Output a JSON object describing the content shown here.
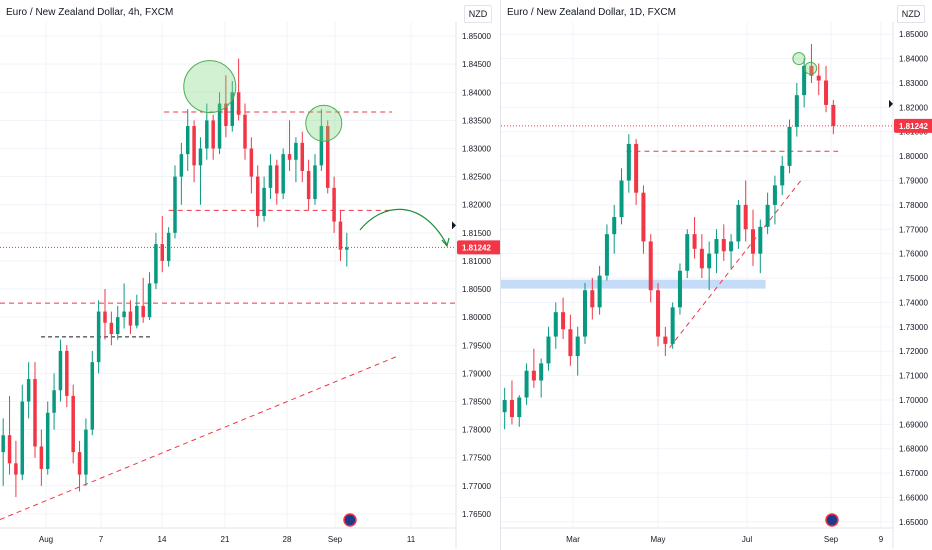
{
  "chart_data": [
    {
      "type": "candlestick",
      "title": "Euro / New Zealand Dollar, 4h, FXCM",
      "currency": "NZD",
      "y_ticks": [
        "1.85000",
        "1.84500",
        "1.84000",
        "1.83500",
        "1.83000",
        "1.82500",
        "1.82000",
        "1.81500",
        "1.81000",
        "1.80500",
        "1.80000",
        "1.79500",
        "1.79000",
        "1.78500",
        "1.78000",
        "1.77500",
        "1.77000",
        "1.76500"
      ],
      "x_ticks": [
        "Aug",
        "7",
        "14",
        "21",
        "28",
        "Sep",
        "11"
      ],
      "ylim": [
        1.7625,
        1.8525
      ],
      "last_price": "1.81242",
      "colors": {
        "up": "#089981",
        "down": "#f23645",
        "last": "#f23645",
        "level": "#f23645"
      },
      "levels": [
        1.8365,
        1.819,
        1.8025
      ],
      "support_marker": 1.7965,
      "trendline": [
        [
          0.0,
          1.764
        ],
        [
          0.87,
          1.793
        ]
      ],
      "circles": [
        [
          0.46,
          1.841
        ],
        [
          0.71,
          1.8345
        ]
      ],
      "candles": [
        [
          1.776,
          1.782,
          1.77,
          1.779
        ],
        [
          1.779,
          1.786,
          1.772,
          1.774
        ],
        [
          1.774,
          1.778,
          1.768,
          1.772
        ],
        [
          1.772,
          1.788,
          1.771,
          1.785
        ],
        [
          1.785,
          1.792,
          1.782,
          1.789
        ],
        [
          1.789,
          1.792,
          1.775,
          1.777
        ],
        [
          1.777,
          1.78,
          1.77,
          1.773
        ],
        [
          1.773,
          1.785,
          1.772,
          1.783
        ],
        [
          1.783,
          1.79,
          1.78,
          1.787
        ],
        [
          1.787,
          1.796,
          1.785,
          1.794
        ],
        [
          1.794,
          1.795,
          1.784,
          1.786
        ],
        [
          1.786,
          1.788,
          1.774,
          1.776
        ],
        [
          1.776,
          1.778,
          1.769,
          1.772
        ],
        [
          1.772,
          1.782,
          1.77,
          1.78
        ],
        [
          1.78,
          1.794,
          1.779,
          1.792
        ],
        [
          1.792,
          1.803,
          1.79,
          1.801
        ],
        [
          1.801,
          1.805,
          1.796,
          1.799
        ],
        [
          1.799,
          1.801,
          1.795,
          1.797
        ],
        [
          1.797,
          1.802,
          1.796,
          1.8
        ],
        [
          1.8,
          1.806,
          1.798,
          1.801
        ],
        [
          1.801,
          1.803,
          1.797,
          1.7985
        ],
        [
          1.7985,
          1.804,
          1.798,
          1.802
        ],
        [
          1.802,
          1.807,
          1.799,
          1.8
        ],
        [
          1.8,
          1.808,
          1.7995,
          1.806
        ],
        [
          1.806,
          1.815,
          1.805,
          1.813
        ],
        [
          1.813,
          1.818,
          1.808,
          1.81
        ],
        [
          1.81,
          1.816,
          1.809,
          1.815
        ],
        [
          1.815,
          1.827,
          1.814,
          1.825
        ],
        [
          1.825,
          1.831,
          1.82,
          1.829
        ],
        [
          1.829,
          1.837,
          1.826,
          1.834
        ],
        [
          1.834,
          1.835,
          1.824,
          1.827
        ],
        [
          1.827,
          1.832,
          1.82,
          1.83
        ],
        [
          1.83,
          1.838,
          1.828,
          1.835
        ],
        [
          1.835,
          1.836,
          1.828,
          1.83
        ],
        [
          1.83,
          1.84,
          1.829,
          1.838
        ],
        [
          1.838,
          1.843,
          1.832,
          1.834
        ],
        [
          1.834,
          1.842,
          1.833,
          1.84
        ],
        [
          1.84,
          1.846,
          1.835,
          1.836
        ],
        [
          1.836,
          1.838,
          1.828,
          1.83
        ],
        [
          1.83,
          1.832,
          1.822,
          1.825
        ],
        [
          1.825,
          1.827,
          1.816,
          1.818
        ],
        [
          1.818,
          1.825,
          1.817,
          1.823
        ],
        [
          1.823,
          1.829,
          1.821,
          1.827
        ],
        [
          1.827,
          1.828,
          1.82,
          1.822
        ],
        [
          1.822,
          1.83,
          1.821,
          1.829
        ],
        [
          1.829,
          1.835,
          1.826,
          1.828
        ],
        [
          1.828,
          1.832,
          1.824,
          1.831
        ],
        [
          1.831,
          1.833,
          1.824,
          1.826
        ],
        [
          1.826,
          1.828,
          1.819,
          1.821
        ],
        [
          1.821,
          1.829,
          1.82,
          1.827
        ],
        [
          1.827,
          1.837,
          1.826,
          1.834
        ],
        [
          1.834,
          1.835,
          1.822,
          1.823
        ],
        [
          1.823,
          1.825,
          1.815,
          1.817
        ],
        [
          1.817,
          1.819,
          1.81,
          1.812
        ],
        [
          1.812,
          1.815,
          1.809,
          1.8124
        ]
      ]
    },
    {
      "type": "candlestick",
      "title": "Euro / New Zealand Dollar, 1D, FXCM",
      "currency": "NZD",
      "y_ticks": [
        "1.85000",
        "1.84000",
        "1.83000",
        "1.82000",
        "1.81000",
        "1.80000",
        "1.79000",
        "1.78000",
        "1.77000",
        "1.76000",
        "1.75000",
        "1.74000",
        "1.73000",
        "1.72000",
        "1.71000",
        "1.70000",
        "1.69000",
        "1.68000",
        "1.67000",
        "1.66000",
        "1.65000"
      ],
      "x_ticks": [
        "Mar",
        "May",
        "Jul",
        "Sep",
        "9"
      ],
      "ylim": [
        1.6475,
        1.855
      ],
      "last_price": "1.81242",
      "colors": {
        "up": "#089981",
        "down": "#f23645",
        "last": "#f23645",
        "level": "#f23645",
        "zone": "#bbd6f7"
      },
      "levels": [
        1.802
      ],
      "zone": [
        1.7465,
        1.7485
      ],
      "trendline": [
        [
          0.43,
          1.7215
        ],
        [
          0.77,
          1.791
        ]
      ],
      "circles": [
        [
          0.76,
          1.84
        ],
        [
          0.79,
          1.836
        ]
      ],
      "candles": [
        [
          1.695,
          1.705,
          1.688,
          1.7
        ],
        [
          1.7,
          1.708,
          1.69,
          1.693
        ],
        [
          1.693,
          1.702,
          1.689,
          1.701
        ],
        [
          1.701,
          1.715,
          1.698,
          1.712
        ],
        [
          1.712,
          1.721,
          1.705,
          1.708
        ],
        [
          1.708,
          1.717,
          1.701,
          1.715
        ],
        [
          1.715,
          1.73,
          1.712,
          1.726
        ],
        [
          1.726,
          1.74,
          1.721,
          1.736
        ],
        [
          1.736,
          1.742,
          1.725,
          1.729
        ],
        [
          1.729,
          1.735,
          1.714,
          1.718
        ],
        [
          1.718,
          1.73,
          1.71,
          1.726
        ],
        [
          1.726,
          1.748,
          1.723,
          1.745
        ],
        [
          1.745,
          1.75,
          1.733,
          1.738
        ],
        [
          1.738,
          1.755,
          1.735,
          1.751
        ],
        [
          1.751,
          1.772,
          1.749,
          1.768
        ],
        [
          1.768,
          1.78,
          1.76,
          1.775
        ],
        [
          1.775,
          1.795,
          1.772,
          1.79
        ],
        [
          1.79,
          1.809,
          1.785,
          1.805
        ],
        [
          1.805,
          1.807,
          1.78,
          1.785
        ],
        [
          1.785,
          1.788,
          1.76,
          1.765
        ],
        [
          1.765,
          1.768,
          1.74,
          1.745
        ],
        [
          1.745,
          1.748,
          1.722,
          1.726
        ],
        [
          1.726,
          1.73,
          1.718,
          1.723
        ],
        [
          1.723,
          1.74,
          1.721,
          1.738
        ],
        [
          1.738,
          1.756,
          1.735,
          1.753
        ],
        [
          1.753,
          1.77,
          1.75,
          1.768
        ],
        [
          1.768,
          1.775,
          1.758,
          1.762
        ],
        [
          1.762,
          1.768,
          1.75,
          1.754
        ],
        [
          1.754,
          1.765,
          1.745,
          1.76
        ],
        [
          1.76,
          1.77,
          1.752,
          1.766
        ],
        [
          1.766,
          1.772,
          1.757,
          1.761
        ],
        [
          1.761,
          1.768,
          1.754,
          1.765
        ],
        [
          1.765,
          1.782,
          1.762,
          1.78
        ],
        [
          1.78,
          1.79,
          1.765,
          1.77
        ],
        [
          1.77,
          1.778,
          1.755,
          1.76
        ],
        [
          1.76,
          1.774,
          1.752,
          1.771
        ],
        [
          1.771,
          1.785,
          1.768,
          1.78
        ],
        [
          1.78,
          1.792,
          1.772,
          1.788
        ],
        [
          1.788,
          1.8,
          1.784,
          1.796
        ],
        [
          1.796,
          1.815,
          1.793,
          1.812
        ],
        [
          1.812,
          1.83,
          1.808,
          1.825
        ],
        [
          1.825,
          1.84,
          1.82,
          1.837
        ],
        [
          1.837,
          1.846,
          1.83,
          1.833
        ],
        [
          1.833,
          1.838,
          1.825,
          1.831
        ],
        [
          1.831,
          1.837,
          1.818,
          1.821
        ],
        [
          1.821,
          1.823,
          1.809,
          1.8124
        ]
      ]
    }
  ]
}
